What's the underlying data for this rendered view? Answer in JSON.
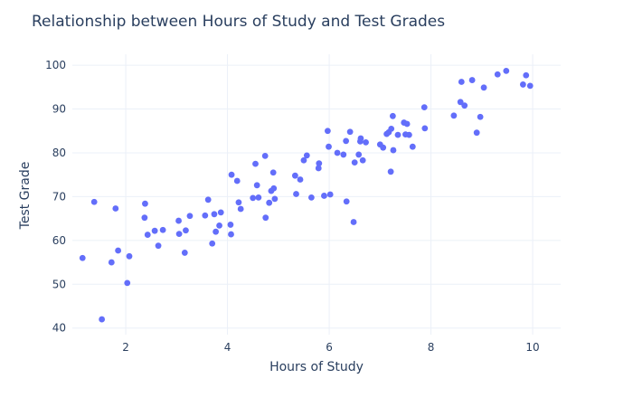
{
  "chart_data": {
    "type": "scatter",
    "title": "Relationship between Hours of Study and Test Grades",
    "xlabel": "Hours of Study",
    "ylabel": "Test Grade",
    "xlim": [
      0.95,
      10.55
    ],
    "ylim": [
      38.5,
      102.5
    ],
    "xticks": [
      2,
      4,
      6,
      8,
      10
    ],
    "yticks": [
      40,
      50,
      60,
      70,
      80,
      90,
      100
    ],
    "grid": true,
    "legend": "none",
    "marker_color": "#636efa",
    "points": [
      [
        1.15,
        56.0
      ],
      [
        1.38,
        68.8
      ],
      [
        1.53,
        42.0
      ],
      [
        1.72,
        55.0
      ],
      [
        1.8,
        67.3
      ],
      [
        1.85,
        57.7
      ],
      [
        2.03,
        50.3
      ],
      [
        2.07,
        56.4
      ],
      [
        2.37,
        65.2
      ],
      [
        2.38,
        68.4
      ],
      [
        2.43,
        61.3
      ],
      [
        2.57,
        62.2
      ],
      [
        2.64,
        58.8
      ],
      [
        2.73,
        62.4
      ],
      [
        3.04,
        64.5
      ],
      [
        3.05,
        61.5
      ],
      [
        3.16,
        57.2
      ],
      [
        3.18,
        62.3
      ],
      [
        3.26,
        65.6
      ],
      [
        3.56,
        65.7
      ],
      [
        3.62,
        69.3
      ],
      [
        3.7,
        59.3
      ],
      [
        3.74,
        66.0
      ],
      [
        3.77,
        62.0
      ],
      [
        3.84,
        63.4
      ],
      [
        3.87,
        66.4
      ],
      [
        4.06,
        63.6
      ],
      [
        4.07,
        61.4
      ],
      [
        4.08,
        75.0
      ],
      [
        4.19,
        73.6
      ],
      [
        4.22,
        68.7
      ],
      [
        4.26,
        67.2
      ],
      [
        4.5,
        69.7
      ],
      [
        4.55,
        77.5
      ],
      [
        4.58,
        72.6
      ],
      [
        4.61,
        69.8
      ],
      [
        4.74,
        79.3
      ],
      [
        4.75,
        65.2
      ],
      [
        4.82,
        68.6
      ],
      [
        4.86,
        71.3
      ],
      [
        4.9,
        75.5
      ],
      [
        4.91,
        71.9
      ],
      [
        4.93,
        69.5
      ],
      [
        5.33,
        74.8
      ],
      [
        5.35,
        70.6
      ],
      [
        5.43,
        73.9
      ],
      [
        5.5,
        78.3
      ],
      [
        5.56,
        79.4
      ],
      [
        5.65,
        69.8
      ],
      [
        5.79,
        76.5
      ],
      [
        5.8,
        77.6
      ],
      [
        5.9,
        70.2
      ],
      [
        5.97,
        85.0
      ],
      [
        5.99,
        81.4
      ],
      [
        6.02,
        70.5
      ],
      [
        6.16,
        80.0
      ],
      [
        6.28,
        79.6
      ],
      [
        6.33,
        82.7
      ],
      [
        6.34,
        68.9
      ],
      [
        6.41,
        84.8
      ],
      [
        6.48,
        64.2
      ],
      [
        6.5,
        77.8
      ],
      [
        6.58,
        79.6
      ],
      [
        6.61,
        82.6
      ],
      [
        6.62,
        83.3
      ],
      [
        6.66,
        78.3
      ],
      [
        6.72,
        82.4
      ],
      [
        7.0,
        81.9
      ],
      [
        7.06,
        81.2
      ],
      [
        7.13,
        84.3
      ],
      [
        7.17,
        84.7
      ],
      [
        7.21,
        75.7
      ],
      [
        7.22,
        85.5
      ],
      [
        7.25,
        88.4
      ],
      [
        7.26,
        80.6
      ],
      [
        7.35,
        84.1
      ],
      [
        7.47,
        86.9
      ],
      [
        7.5,
        84.2
      ],
      [
        7.53,
        86.6
      ],
      [
        7.57,
        84.1
      ],
      [
        7.64,
        81.4
      ],
      [
        7.87,
        90.4
      ],
      [
        7.88,
        85.6
      ],
      [
        8.45,
        88.5
      ],
      [
        8.58,
        91.6
      ],
      [
        8.6,
        96.2
      ],
      [
        8.66,
        90.8
      ],
      [
        8.81,
        96.6
      ],
      [
        8.9,
        84.6
      ],
      [
        8.97,
        88.2
      ],
      [
        9.04,
        94.9
      ],
      [
        9.31,
        97.9
      ],
      [
        9.48,
        98.7
      ],
      [
        9.81,
        95.6
      ],
      [
        9.87,
        97.7
      ],
      [
        9.95,
        95.3
      ]
    ]
  }
}
